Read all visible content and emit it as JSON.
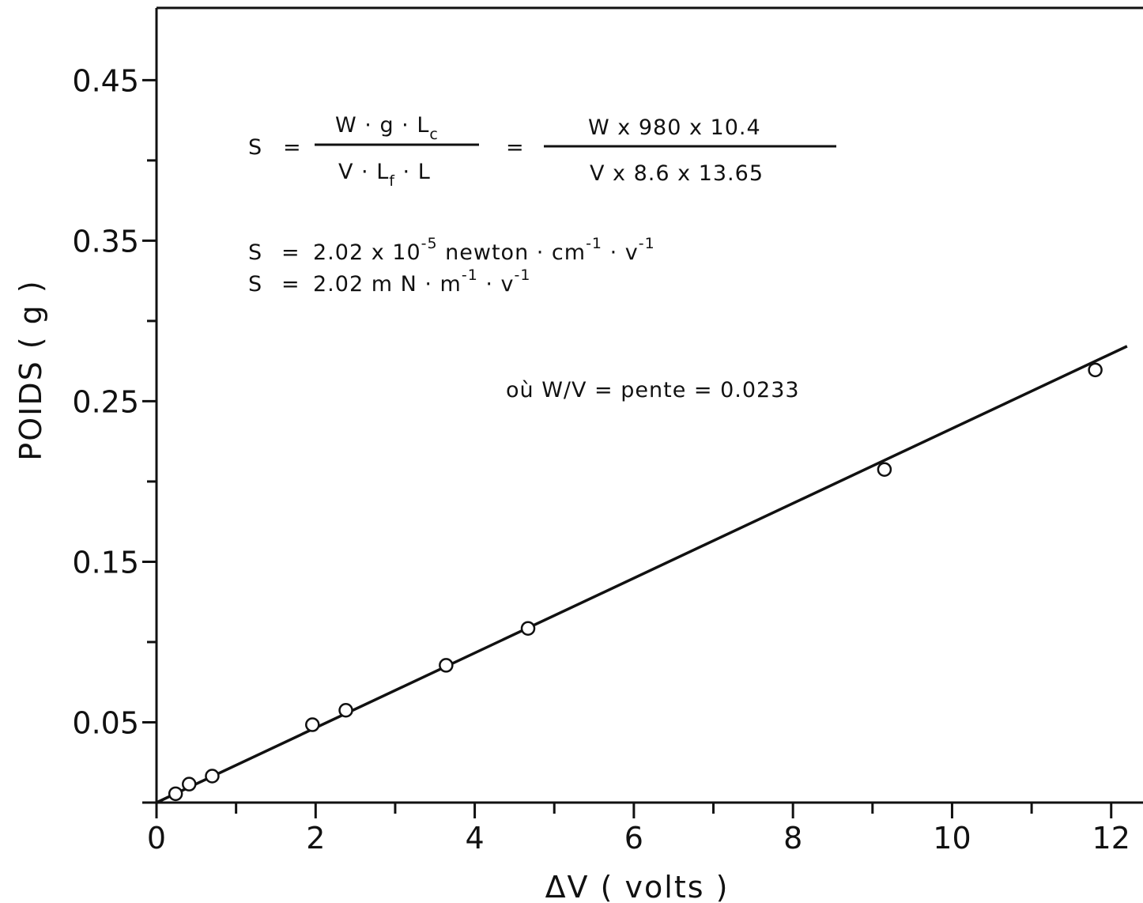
{
  "chart_data": {
    "type": "scatter",
    "xlabel": "ΔV ( volts )",
    "ylabel": "POIDS ( g )",
    "xlim": [
      0,
      12.4
    ],
    "ylim": [
      0,
      0.495
    ],
    "x_ticks": [
      0,
      2,
      4,
      6,
      8,
      10,
      12
    ],
    "x_minor_ticks": [
      1,
      3,
      5,
      7,
      9,
      11
    ],
    "y_ticks": [
      "0.05",
      "0.15",
      "0.25",
      "0.35",
      "0.45"
    ],
    "y_minor_ticks": [
      0.1,
      0.2,
      0.3,
      0.4
    ],
    "grid": false,
    "legend": "none",
    "series": [
      {
        "marker": "open-circle",
        "x": [
          0.24,
          0.41,
          0.7,
          1.96,
          2.38,
          3.64,
          4.67,
          9.15,
          11.8
        ],
        "y": [
          0.0055,
          0.0115,
          0.0165,
          0.0485,
          0.0575,
          0.0855,
          0.1085,
          0.2075,
          0.2695
        ]
      }
    ],
    "fit_line": {
      "slope": 0.0233,
      "intercept": 0,
      "x_range": [
        0,
        12.2
      ]
    },
    "annotations": {
      "eq1": {
        "lhs": "S",
        "equals": "=",
        "frac1_num": "W · g · L",
        "frac1_num_sub": "c",
        "frac1_den_a": "V · L",
        "frac1_den_sub": "f",
        "frac1_den_b": " · L",
        "equals2": "=",
        "frac2_num": "W  x  980  x  10.4",
        "frac2_den": "V  x  8.6  x  13.65"
      },
      "eq2": {
        "lhs": "S",
        "equals": "=",
        "value": "2.02  x  10",
        "exp": "-5",
        "unit_a": " newton · cm",
        "unit_a_exp": "-1",
        "unit_b": " · v",
        "unit_b_exp": "-1"
      },
      "eq3": {
        "lhs": "S",
        "equals": "=",
        "value": "2.02   m N · m",
        "value_exp": "-1",
        "unit_b": " · v",
        "unit_b_exp": "-1"
      },
      "eq4": "où    W/V  =  pente  =  0.0233"
    },
    "colors": {
      "ink": "#111111",
      "background": "#ffffff",
      "marker_fill": "#ffffff"
    }
  }
}
